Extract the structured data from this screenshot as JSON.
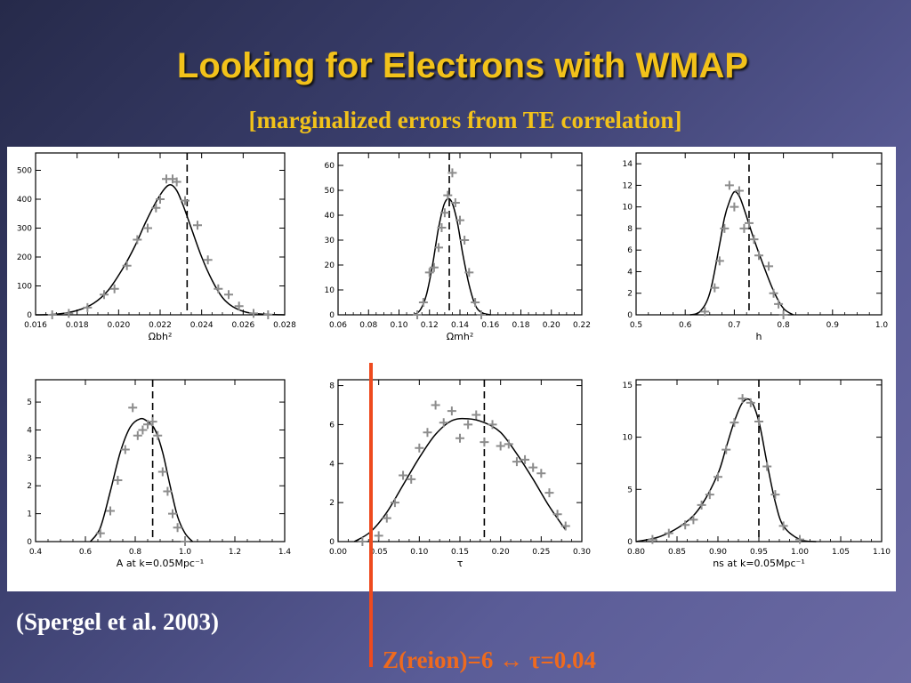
{
  "title": "Looking for Electrons with WMAP",
  "subtitle": "[marginalized errors from TE correlation]",
  "citation": "(Spergel et al. 2003)",
  "marker": {
    "label": "Z(reion)=6  ↔ τ=0.04",
    "color": "#ee4a1e"
  },
  "colors": {
    "title": "#f2c21a",
    "curve": "#000000",
    "points": "#8c8c8c",
    "dashed": "#000000"
  },
  "chart_data": [
    {
      "type": "line",
      "xlabel": "Ωbh²",
      "xlim": [
        0.016,
        0.028
      ],
      "ylim": [
        0,
        560
      ],
      "xticks": [
        "0.016",
        "0.018",
        "0.020",
        "0.022",
        "0.024",
        "0.026",
        "0.028"
      ],
      "yticks": [
        "0",
        "100",
        "200",
        "300",
        "400",
        "500"
      ],
      "dashed_x": 0.0233,
      "series": [
        {
          "kind": "curve",
          "x": [
            0.016,
            0.017,
            0.018,
            0.0188,
            0.0195,
            0.0202,
            0.0208,
            0.0213,
            0.0218,
            0.0222,
            0.0225,
            0.0228,
            0.0231,
            0.0235,
            0.024,
            0.0245,
            0.025,
            0.0255,
            0.0262,
            0.027,
            0.028
          ],
          "y": [
            0,
            2,
            15,
            40,
            85,
            160,
            240,
            320,
            390,
            435,
            450,
            430,
            380,
            300,
            200,
            120,
            60,
            28,
            8,
            2,
            0
          ]
        },
        {
          "kind": "points",
          "x": [
            0.0168,
            0.0176,
            0.0185,
            0.0193,
            0.0198,
            0.0204,
            0.0209,
            0.0214,
            0.0218,
            0.022,
            0.0223,
            0.0226,
            0.0228,
            0.0232,
            0.0238,
            0.0243,
            0.0248,
            0.0253,
            0.0258,
            0.0265,
            0.0272
          ],
          "y": [
            0,
            5,
            25,
            70,
            90,
            170,
            260,
            300,
            370,
            400,
            470,
            470,
            460,
            395,
            310,
            190,
            90,
            70,
            30,
            5,
            0
          ]
        }
      ]
    },
    {
      "type": "line",
      "xlabel": "Ωmh²",
      "xlim": [
        0.06,
        0.22
      ],
      "ylim": [
        0,
        65
      ],
      "xticks": [
        "0.06",
        "0.08",
        "0.10",
        "0.12",
        "0.14",
        "0.16",
        "0.18",
        "0.20",
        "0.22"
      ],
      "yticks": [
        "0",
        "10",
        "20",
        "30",
        "40",
        "50",
        "60"
      ],
      "dashed_x": 0.133,
      "series": [
        {
          "kind": "curve",
          "x": [
            0.11,
            0.114,
            0.118,
            0.122,
            0.126,
            0.13,
            0.134,
            0.138,
            0.142,
            0.146,
            0.15,
            0.154,
            0.16
          ],
          "y": [
            0,
            2,
            8,
            20,
            35,
            45,
            46,
            38,
            24,
            12,
            4,
            1,
            0
          ]
        },
        {
          "kind": "points",
          "x": [
            0.112,
            0.116,
            0.12,
            0.123,
            0.126,
            0.128,
            0.13,
            0.132,
            0.135,
            0.137,
            0.14,
            0.143,
            0.146,
            0.15,
            0.154
          ],
          "y": [
            0,
            5,
            17,
            19,
            27,
            35,
            41,
            48,
            57,
            45,
            38,
            30,
            17,
            5,
            0
          ]
        }
      ]
    },
    {
      "type": "line",
      "xlabel": "h",
      "xlim": [
        0.5,
        1.0
      ],
      "ylim": [
        0,
        15
      ],
      "xticks": [
        "0.5",
        "0.6",
        "0.7",
        "0.8",
        "0.9",
        "1.0"
      ],
      "yticks": [
        "0",
        "2",
        "4",
        "6",
        "8",
        "10",
        "12",
        "14"
      ],
      "dashed_x": 0.73,
      "series": [
        {
          "kind": "curve",
          "x": [
            0.61,
            0.63,
            0.65,
            0.67,
            0.68,
            0.69,
            0.7,
            0.71,
            0.72,
            0.74,
            0.76,
            0.78,
            0.8,
            0.82
          ],
          "y": [
            0,
            0.3,
            2,
            6.5,
            9,
            10.5,
            11.4,
            11,
            9.8,
            7,
            4.5,
            2.2,
            0.6,
            0
          ],
          "note": "smooth"
        },
        {
          "kind": "points",
          "x": [
            0.64,
            0.66,
            0.67,
            0.68,
            0.69,
            0.7,
            0.71,
            0.72,
            0.73,
            0.74,
            0.75,
            0.77,
            0.78,
            0.79,
            0.8
          ],
          "y": [
            0.3,
            2.5,
            5,
            8,
            12,
            10,
            11.5,
            8,
            8.5,
            7,
            5.5,
            4.5,
            2,
            1,
            0
          ]
        }
      ]
    },
    {
      "type": "line",
      "xlabel": "A at k=0.05Mpc⁻¹",
      "xlim": [
        0.4,
        1.4
      ],
      "ylim": [
        0,
        5.8
      ],
      "xticks": [
        "0.4",
        "0.6",
        "0.8",
        "1.0",
        "1.2",
        "1.4"
      ],
      "yticks": [
        "0",
        "1",
        "2",
        "3",
        "4",
        "5"
      ],
      "dashed_x": 0.87,
      "series": [
        {
          "kind": "curve",
          "x": [
            0.62,
            0.66,
            0.7,
            0.74,
            0.78,
            0.82,
            0.85,
            0.88,
            0.91,
            0.94,
            0.97,
            1.0,
            1.03
          ],
          "y": [
            0,
            0.5,
            1.8,
            3.2,
            4.1,
            4.4,
            4.3,
            4.0,
            3.2,
            2.0,
            0.9,
            0.3,
            0
          ],
          "note": "smooth"
        },
        {
          "kind": "points",
          "x": [
            0.66,
            0.7,
            0.73,
            0.76,
            0.79,
            0.81,
            0.83,
            0.85,
            0.87,
            0.89,
            0.91,
            0.93,
            0.95,
            0.97,
            1.0
          ],
          "y": [
            0.3,
            1.1,
            2.2,
            3.3,
            4.8,
            3.8,
            4.0,
            4.2,
            4.3,
            3.8,
            2.5,
            1.8,
            1.0,
            0.5,
            0
          ]
        }
      ]
    },
    {
      "type": "line",
      "xlabel": "τ",
      "xlim": [
        0.0,
        0.3
      ],
      "ylim": [
        0,
        8.3
      ],
      "xticks": [
        "0.00",
        "0.05",
        "0.10",
        "0.15",
        "0.20",
        "0.25",
        "0.30"
      ],
      "yticks": [
        "0",
        "2",
        "4",
        "6",
        "8"
      ],
      "dashed_x": 0.18,
      "series": [
        {
          "kind": "curve",
          "x": [
            0.02,
            0.04,
            0.06,
            0.08,
            0.1,
            0.12,
            0.14,
            0.16,
            0.18,
            0.2,
            0.22,
            0.24,
            0.26,
            0.28
          ],
          "y": [
            0,
            0.5,
            1.5,
            2.9,
            4.3,
            5.5,
            6.2,
            6.3,
            6.1,
            5.6,
            4.5,
            3.2,
            1.8,
            0.6
          ],
          "note": "smooth"
        },
        {
          "kind": "points",
          "x": [
            0.03,
            0.05,
            0.06,
            0.07,
            0.08,
            0.09,
            0.1,
            0.11,
            0.12,
            0.13,
            0.14,
            0.15,
            0.16,
            0.17,
            0.18,
            0.19,
            0.2,
            0.21,
            0.22,
            0.23,
            0.24,
            0.25,
            0.26,
            0.27,
            0.28
          ],
          "y": [
            0,
            0.3,
            1.2,
            2,
            3.4,
            3.2,
            4.8,
            5.6,
            7.0,
            6.1,
            6.7,
            5.3,
            6.0,
            6.5,
            5.1,
            6.0,
            4.9,
            5.0,
            4.1,
            4.2,
            3.8,
            3.5,
            2.5,
            1.4,
            0.8
          ]
        }
      ]
    },
    {
      "type": "line",
      "xlabel": "ns at k=0.05Mpc⁻¹",
      "xlim": [
        0.8,
        1.1
      ],
      "ylim": [
        0,
        15.5
      ],
      "xticks": [
        "0.80",
        "0.85",
        "0.90",
        "0.95",
        "1.00",
        "1.05",
        "1.10"
      ],
      "yticks": [
        "0",
        "5",
        "10",
        "15"
      ],
      "dashed_x": 0.95,
      "series": [
        {
          "kind": "curve",
          "x": [
            0.8,
            0.83,
            0.86,
            0.88,
            0.9,
            0.91,
            0.92,
            0.93,
            0.94,
            0.95,
            0.96,
            0.97,
            0.98,
            1.0,
            1.02
          ],
          "y": [
            0,
            0.5,
            1.8,
            3.5,
            6.5,
            9,
            11.5,
            13.3,
            13.5,
            11.5,
            7.5,
            3.8,
            1.5,
            0.2,
            0
          ],
          "note": "smooth"
        },
        {
          "kind": "points",
          "x": [
            0.82,
            0.84,
            0.86,
            0.87,
            0.88,
            0.89,
            0.9,
            0.91,
            0.92,
            0.93,
            0.94,
            0.95,
            0.96,
            0.97,
            0.98,
            1.0
          ],
          "y": [
            0.2,
            0.8,
            1.6,
            2.1,
            3.5,
            4.5,
            6.2,
            8.8,
            11.4,
            13.7,
            13.3,
            11.5,
            7.2,
            4.5,
            1.5,
            0.2
          ]
        }
      ]
    }
  ]
}
